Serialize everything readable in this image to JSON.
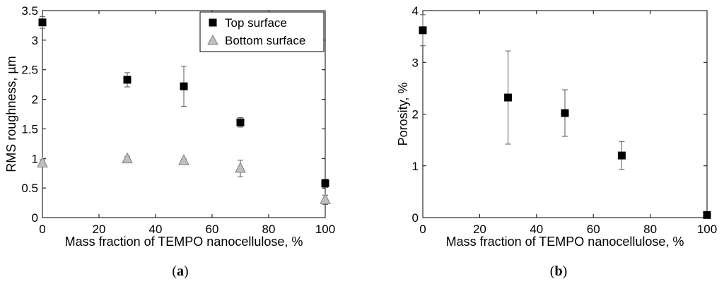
{
  "chart_data": [
    {
      "type": "scatter",
      "panel_label": "a",
      "xlabel": "Mass fraction of TEMPO nanocellulose, %",
      "ylabel": "RMS roughness, µm",
      "xlim": [
        0,
        100
      ],
      "ylim": [
        0,
        3.5
      ],
      "x_ticks": [
        0,
        20,
        40,
        60,
        80,
        100
      ],
      "y_ticks": [
        0,
        0.5,
        1,
        1.5,
        2,
        2.5,
        3,
        3.5
      ],
      "grid": false,
      "legend_position": "top-right",
      "series": [
        {
          "name": "Top surface",
          "marker": "square",
          "color": "#000000",
          "x": [
            0,
            30,
            50,
            70,
            100
          ],
          "y": [
            3.3,
            2.33,
            2.22,
            1.61,
            0.58
          ],
          "err": [
            0.1,
            0.12,
            0.34,
            0.08,
            0.07
          ]
        },
        {
          "name": "Bottom surface",
          "marker": "triangle",
          "color": "#bfbfbf",
          "x": [
            0,
            30,
            50,
            70,
            100
          ],
          "y": [
            0.92,
            0.99,
            0.96,
            0.83,
            0.3
          ],
          "err": [
            0.06,
            0.04,
            0.03,
            0.14,
            0.08
          ]
        }
      ]
    },
    {
      "type": "scatter",
      "panel_label": "b",
      "xlabel": "Mass fraction of TEMPO nanocellulose, %",
      "ylabel": "Porosity, %",
      "xlim": [
        0,
        100
      ],
      "ylim": [
        0,
        4
      ],
      "x_ticks": [
        0,
        20,
        40,
        60,
        80,
        100
      ],
      "y_ticks": [
        0,
        1,
        2,
        3,
        4
      ],
      "grid": false,
      "series": [
        {
          "marker": "square",
          "color": "#000000",
          "x": [
            0,
            30,
            50,
            70,
            100
          ],
          "y": [
            3.62,
            2.32,
            2.02,
            1.2,
            0.05
          ],
          "err": [
            0.3,
            0.9,
            0.45,
            0.27,
            0.0
          ]
        }
      ]
    }
  ]
}
